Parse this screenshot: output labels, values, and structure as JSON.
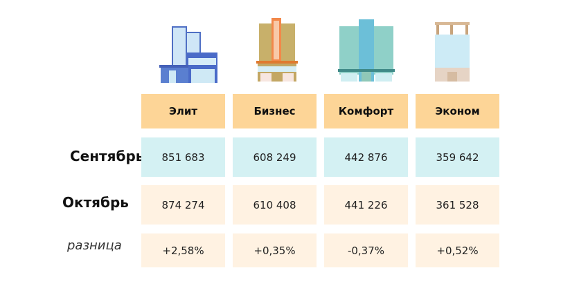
{
  "columns": [
    {
      "label": "Элит",
      "icon": "elite-building-icon"
    },
    {
      "label": "Бизнес",
      "icon": "business-building-icon"
    },
    {
      "label": "Комфорт",
      "icon": "comfort-building-icon"
    },
    {
      "label": "Эконом",
      "icon": "economy-building-icon"
    }
  ],
  "rows": {
    "september": {
      "label": "Сентябрь",
      "values": [
        "851 683",
        "608 249",
        "442 876",
        "359 642"
      ]
    },
    "october": {
      "label": "Октябрь",
      "values": [
        "874 274",
        "610 408",
        "441 226",
        "361 528"
      ]
    },
    "difference": {
      "label": "разница",
      "values": [
        "+2,58%",
        "+0,35%",
        "-0,37%",
        "+0,52%"
      ]
    }
  },
  "colors": {
    "header": "#fdd597",
    "september": "#d4f1f3",
    "october": "#fff2e2"
  }
}
